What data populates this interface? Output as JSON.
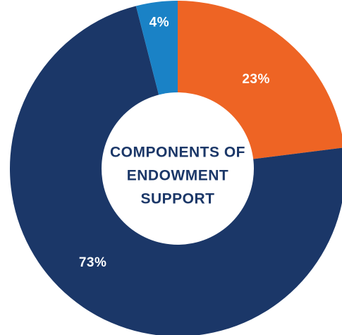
{
  "chart_data": {
    "type": "pie",
    "title_lines": [
      "COMPONENTS OF",
      "ENDOWMENT",
      "SUPPORT"
    ],
    "slices": [
      {
        "value": 23,
        "label": "23%",
        "color": "#ee6424"
      },
      {
        "value": 73,
        "label": "73%",
        "color": "#1b3768"
      },
      {
        "value": 4,
        "label": "4%",
        "color": "#1a82c6"
      }
    ],
    "legend": "none"
  }
}
